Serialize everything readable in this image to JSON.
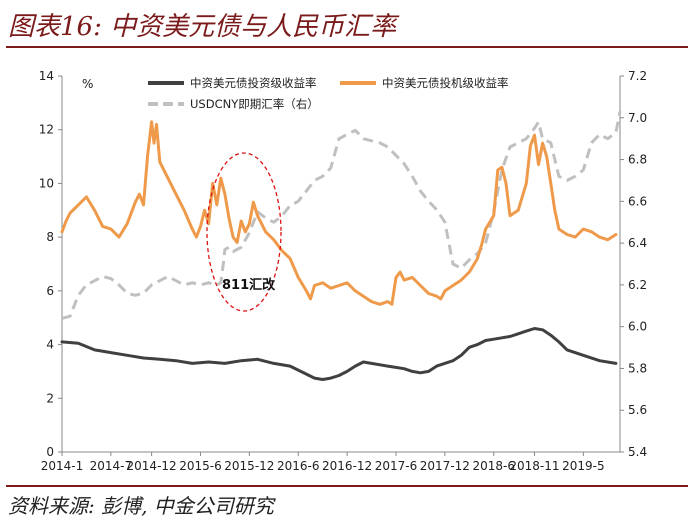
{
  "header": {
    "title": "图表16: 中资美元债与人民币汇率"
  },
  "footer": {
    "source": "资料来源: 彭博, 中金公司研究"
  },
  "chart_data": {
    "type": "line",
    "left_axis": {
      "unit": "%",
      "ylim": [
        0,
        14
      ],
      "ticks": [
        "0",
        "2",
        "4",
        "6",
        "8",
        "10",
        "12",
        "14"
      ]
    },
    "right_axis": {
      "ylim": [
        5.4,
        7.2
      ],
      "ticks": [
        "5.4",
        "5.6",
        "5.8",
        "6.0",
        "6.2",
        "6.4",
        "6.6",
        "6.8",
        "7.0",
        "7.2"
      ]
    },
    "x_ticks": [
      "2014-1",
      "2014-7",
      "2014-12",
      "2015-6",
      "2015-12",
      "2016-6",
      "2016-12",
      "2017-6",
      "2017-12",
      "2018-6",
      "2018-11",
      "2019-5"
    ],
    "x_tick_months": [
      0,
      6,
      11,
      17,
      23,
      29,
      35,
      41,
      47,
      53,
      58,
      64
    ],
    "xlim_months": [
      0,
      68.5
    ],
    "legend_position": "top",
    "annotation": {
      "text": "811汇改",
      "month": 19.6,
      "value": 6.4
    },
    "series": [
      {
        "name": "中资美元债投资级收益率",
        "axis": "left",
        "color": "#404040",
        "dash": "solid",
        "points": [
          [
            0,
            4.1
          ],
          [
            2,
            4.05
          ],
          [
            4,
            3.8
          ],
          [
            6,
            3.7
          ],
          [
            8,
            3.6
          ],
          [
            10,
            3.5
          ],
          [
            12,
            3.45
          ],
          [
            14,
            3.4
          ],
          [
            16,
            3.3
          ],
          [
            18,
            3.35
          ],
          [
            20,
            3.3
          ],
          [
            22,
            3.4
          ],
          [
            24,
            3.45
          ],
          [
            26,
            3.3
          ],
          [
            28,
            3.2
          ],
          [
            29,
            3.05
          ],
          [
            30,
            2.9
          ],
          [
            31,
            2.75
          ],
          [
            32,
            2.7
          ],
          [
            33,
            2.75
          ],
          [
            34,
            2.85
          ],
          [
            35,
            3.0
          ],
          [
            36,
            3.2
          ],
          [
            37,
            3.35
          ],
          [
            38,
            3.3
          ],
          [
            40,
            3.2
          ],
          [
            42,
            3.1
          ],
          [
            43,
            3.0
          ],
          [
            44,
            2.95
          ],
          [
            45,
            3.0
          ],
          [
            46,
            3.2
          ],
          [
            48,
            3.4
          ],
          [
            49,
            3.6
          ],
          [
            50,
            3.9
          ],
          [
            51,
            4.0
          ],
          [
            52,
            4.15
          ],
          [
            53,
            4.2
          ],
          [
            55,
            4.3
          ],
          [
            56,
            4.4
          ],
          [
            57,
            4.5
          ],
          [
            58,
            4.6
          ],
          [
            59,
            4.55
          ],
          [
            60,
            4.35
          ],
          [
            61,
            4.1
          ],
          [
            62,
            3.8
          ],
          [
            64,
            3.6
          ],
          [
            66,
            3.4
          ],
          [
            68,
            3.3
          ]
        ]
      },
      {
        "name": "中资美元债投机级收益率",
        "axis": "left",
        "color": "#ef9a4a",
        "dash": "solid",
        "points": [
          [
            0,
            8.2
          ],
          [
            0.5,
            8.6
          ],
          [
            1,
            8.9
          ],
          [
            2,
            9.2
          ],
          [
            3,
            9.5
          ],
          [
            4,
            9.0
          ],
          [
            5,
            8.4
          ],
          [
            6,
            8.3
          ],
          [
            7,
            8.0
          ],
          [
            8,
            8.5
          ],
          [
            9,
            9.3
          ],
          [
            9.5,
            9.6
          ],
          [
            10,
            9.2
          ],
          [
            10.5,
            11.0
          ],
          [
            11,
            12.3
          ],
          [
            11.3,
            11.5
          ],
          [
            11.6,
            12.2
          ],
          [
            12,
            10.8
          ],
          [
            13,
            10.2
          ],
          [
            14,
            9.6
          ],
          [
            15,
            9.0
          ],
          [
            16,
            8.3
          ],
          [
            16.5,
            8.0
          ],
          [
            17,
            8.4
          ],
          [
            17.5,
            9.0
          ],
          [
            18,
            8.5
          ],
          [
            18.5,
            10.0
          ],
          [
            19,
            9.2
          ],
          [
            19.5,
            10.2
          ],
          [
            20,
            9.6
          ],
          [
            20.5,
            8.7
          ],
          [
            21,
            8.0
          ],
          [
            21.5,
            7.8
          ],
          [
            22,
            8.6
          ],
          [
            22.5,
            8.2
          ],
          [
            23,
            8.5
          ],
          [
            23.5,
            9.3
          ],
          [
            24,
            8.8
          ],
          [
            24.5,
            8.5
          ],
          [
            25,
            8.2
          ],
          [
            26,
            7.9
          ],
          [
            27,
            7.5
          ],
          [
            28,
            7.2
          ],
          [
            29,
            6.5
          ],
          [
            30,
            6.0
          ],
          [
            30.5,
            5.7
          ],
          [
            31,
            6.2
          ],
          [
            32,
            6.3
          ],
          [
            33,
            6.1
          ],
          [
            34,
            6.2
          ],
          [
            35,
            6.3
          ],
          [
            36,
            6.0
          ],
          [
            37,
            5.8
          ],
          [
            38,
            5.6
          ],
          [
            39,
            5.5
          ],
          [
            40,
            5.6
          ],
          [
            40.5,
            5.5
          ],
          [
            41,
            6.5
          ],
          [
            41.5,
            6.7
          ],
          [
            42,
            6.4
          ],
          [
            43,
            6.5
          ],
          [
            44,
            6.2
          ],
          [
            45,
            5.9
          ],
          [
            46,
            5.8
          ],
          [
            46.5,
            5.7
          ],
          [
            47,
            6.0
          ],
          [
            48,
            6.2
          ],
          [
            49,
            6.4
          ],
          [
            50,
            6.7
          ],
          [
            51,
            7.2
          ],
          [
            51.5,
            7.7
          ],
          [
            52,
            8.3
          ],
          [
            53,
            8.8
          ],
          [
            53.5,
            10.5
          ],
          [
            54,
            10.6
          ],
          [
            54.5,
            10.0
          ],
          [
            55,
            8.8
          ],
          [
            56,
            9.0
          ],
          [
            57,
            10.0
          ],
          [
            57.5,
            11.4
          ],
          [
            58,
            11.8
          ],
          [
            58.5,
            10.7
          ],
          [
            59,
            11.5
          ],
          [
            59.5,
            11.0
          ],
          [
            60,
            10.0
          ],
          [
            60.5,
            9.0
          ],
          [
            61,
            8.3
          ],
          [
            62,
            8.1
          ],
          [
            63,
            8.0
          ],
          [
            64,
            8.3
          ],
          [
            65,
            8.2
          ],
          [
            66,
            8.0
          ],
          [
            67,
            7.9
          ],
          [
            68,
            8.1
          ]
        ]
      },
      {
        "name": "USDCNY即期汇率（右）",
        "axis": "right",
        "color": "#c0c0c0",
        "dash": "dashed",
        "points": [
          [
            0,
            6.04
          ],
          [
            1,
            6.05
          ],
          [
            2,
            6.15
          ],
          [
            3,
            6.2
          ],
          [
            4,
            6.22
          ],
          [
            5,
            6.24
          ],
          [
            6,
            6.23
          ],
          [
            7,
            6.2
          ],
          [
            8,
            6.16
          ],
          [
            9,
            6.15
          ],
          [
            10,
            6.16
          ],
          [
            11,
            6.2
          ],
          [
            12,
            6.22
          ],
          [
            13,
            6.24
          ],
          [
            14,
            6.22
          ],
          [
            15,
            6.2
          ],
          [
            16,
            6.21
          ],
          [
            17,
            6.2
          ],
          [
            18,
            6.21
          ],
          [
            19,
            6.2
          ],
          [
            19.5,
            6.21
          ],
          [
            19.8,
            6.3
          ],
          [
            20,
            6.37
          ],
          [
            20.5,
            6.38
          ],
          [
            21,
            6.36
          ],
          [
            22,
            6.38
          ],
          [
            23,
            6.45
          ],
          [
            24,
            6.55
          ],
          [
            25,
            6.52
          ],
          [
            26,
            6.5
          ],
          [
            27,
            6.53
          ],
          [
            28,
            6.58
          ],
          [
            29,
            6.6
          ],
          [
            30,
            6.65
          ],
          [
            31,
            6.7
          ],
          [
            32,
            6.72
          ],
          [
            33,
            6.76
          ],
          [
            34,
            6.9
          ],
          [
            35,
            6.92
          ],
          [
            36,
            6.94
          ],
          [
            37,
            6.9
          ],
          [
            38,
            6.89
          ],
          [
            39,
            6.88
          ],
          [
            40,
            6.86
          ],
          [
            41,
            6.82
          ],
          [
            42,
            6.78
          ],
          [
            43,
            6.72
          ],
          [
            44,
            6.65
          ],
          [
            45,
            6.6
          ],
          [
            46,
            6.56
          ],
          [
            47,
            6.5
          ],
          [
            47.5,
            6.4
          ],
          [
            48,
            6.3
          ],
          [
            49,
            6.28
          ],
          [
            50,
            6.32
          ],
          [
            51,
            6.35
          ],
          [
            52,
            6.4
          ],
          [
            53,
            6.55
          ],
          [
            54,
            6.75
          ],
          [
            55,
            6.86
          ],
          [
            56,
            6.88
          ],
          [
            57,
            6.9
          ],
          [
            58,
            6.95
          ],
          [
            58.5,
            6.98
          ],
          [
            59,
            6.9
          ],
          [
            60,
            6.88
          ],
          [
            60.5,
            6.8
          ],
          [
            61,
            6.72
          ],
          [
            62,
            6.7
          ],
          [
            63,
            6.72
          ],
          [
            64,
            6.75
          ],
          [
            65,
            6.88
          ],
          [
            66,
            6.92
          ],
          [
            67,
            6.9
          ],
          [
            68,
            6.93
          ],
          [
            68.5,
            7.03
          ]
        ]
      }
    ]
  }
}
